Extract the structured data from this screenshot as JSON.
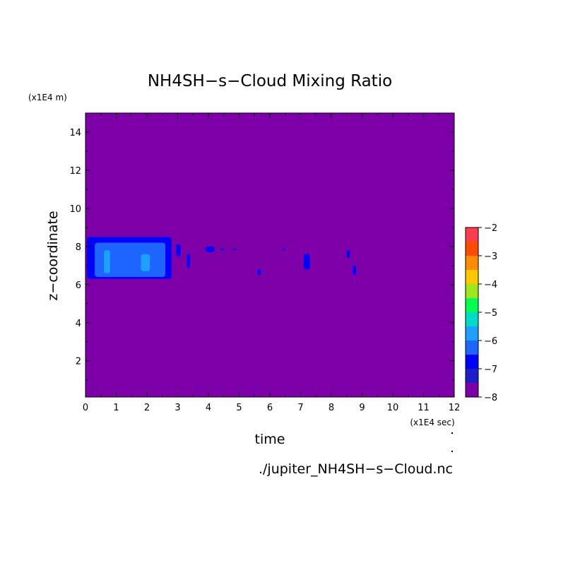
{
  "chart_data": {
    "type": "heatmap",
    "title": "NH4SH−s−Cloud Mixing Ratio",
    "xlabel": "time",
    "ylabel": "z−coordinate",
    "x_unit": "(x1E4 sec)",
    "y_unit": "(x1E4 m)",
    "source_file": "./jupiter_NH4SH−s−Cloud.nc",
    "xlim": [
      0,
      12
    ],
    "ylim": [
      0.1,
      15
    ],
    "x_ticks": [
      "0",
      "1",
      "2",
      "3",
      "4",
      "5",
      "6",
      "7",
      "8",
      "9",
      "10",
      "11",
      "12"
    ],
    "y_ticks": [
      "2",
      "4",
      "6",
      "8",
      "10",
      "12",
      "14"
    ],
    "background_level": -8,
    "colorbar": {
      "levels": [
        -8,
        -7.5,
        -7,
        -6.5,
        -6,
        -5.5,
        -5,
        -4.5,
        -4,
        -3.5,
        -3,
        -2.5,
        -2
      ],
      "tick_labels": [
        "−2",
        "−3",
        "−4",
        "−5",
        "−6",
        "−7",
        "−8"
      ],
      "colors": [
        "#7d00a8",
        "#1e1ec8",
        "#0000ff",
        "#1e64ff",
        "#1ea0ff",
        "#00dcc8",
        "#00ff50",
        "#a0e61e",
        "#ffc800",
        "#ff8c00",
        "#ff4b00",
        "#ff3c50",
        "#ffb4b4"
      ]
    },
    "regions": [
      {
        "level": -7,
        "x": [
          0.05,
          2.8
        ],
        "z": [
          6.3,
          8.5
        ]
      },
      {
        "level": -6.5,
        "x": [
          0.3,
          2.6
        ],
        "z": [
          6.4,
          8.2
        ]
      },
      {
        "level": -6,
        "x": [
          0.6,
          0.8
        ],
        "z": [
          6.6,
          7.8
        ]
      },
      {
        "level": -6,
        "x": [
          1.8,
          2.1
        ],
        "z": [
          6.7,
          7.6
        ]
      },
      {
        "level": -7,
        "x": [
          2.95,
          3.1
        ],
        "z": [
          7.5,
          8.1
        ]
      },
      {
        "level": -7,
        "x": [
          3.3,
          3.4
        ],
        "z": [
          6.9,
          7.6
        ]
      },
      {
        "level": -7,
        "x": [
          3.9,
          4.2
        ],
        "z": [
          7.7,
          8.0
        ]
      },
      {
        "level": -7,
        "x": [
          4.4,
          4.5
        ],
        "z": [
          7.8,
          7.9
        ]
      },
      {
        "level": -7,
        "x": [
          4.8,
          4.9
        ],
        "z": [
          7.8,
          7.9
        ]
      },
      {
        "level": -7,
        "x": [
          5.6,
          5.7
        ],
        "z": [
          6.5,
          6.8
        ]
      },
      {
        "level": -7,
        "x": [
          6.4,
          6.5
        ],
        "z": [
          7.8,
          7.9
        ]
      },
      {
        "level": -7,
        "x": [
          7.1,
          7.3
        ],
        "z": [
          6.8,
          7.6
        ]
      },
      {
        "level": -7,
        "x": [
          8.5,
          8.6
        ],
        "z": [
          7.4,
          7.8
        ]
      },
      {
        "level": -7,
        "x": [
          8.7,
          8.8
        ],
        "z": [
          6.5,
          7.0
        ]
      }
    ]
  }
}
